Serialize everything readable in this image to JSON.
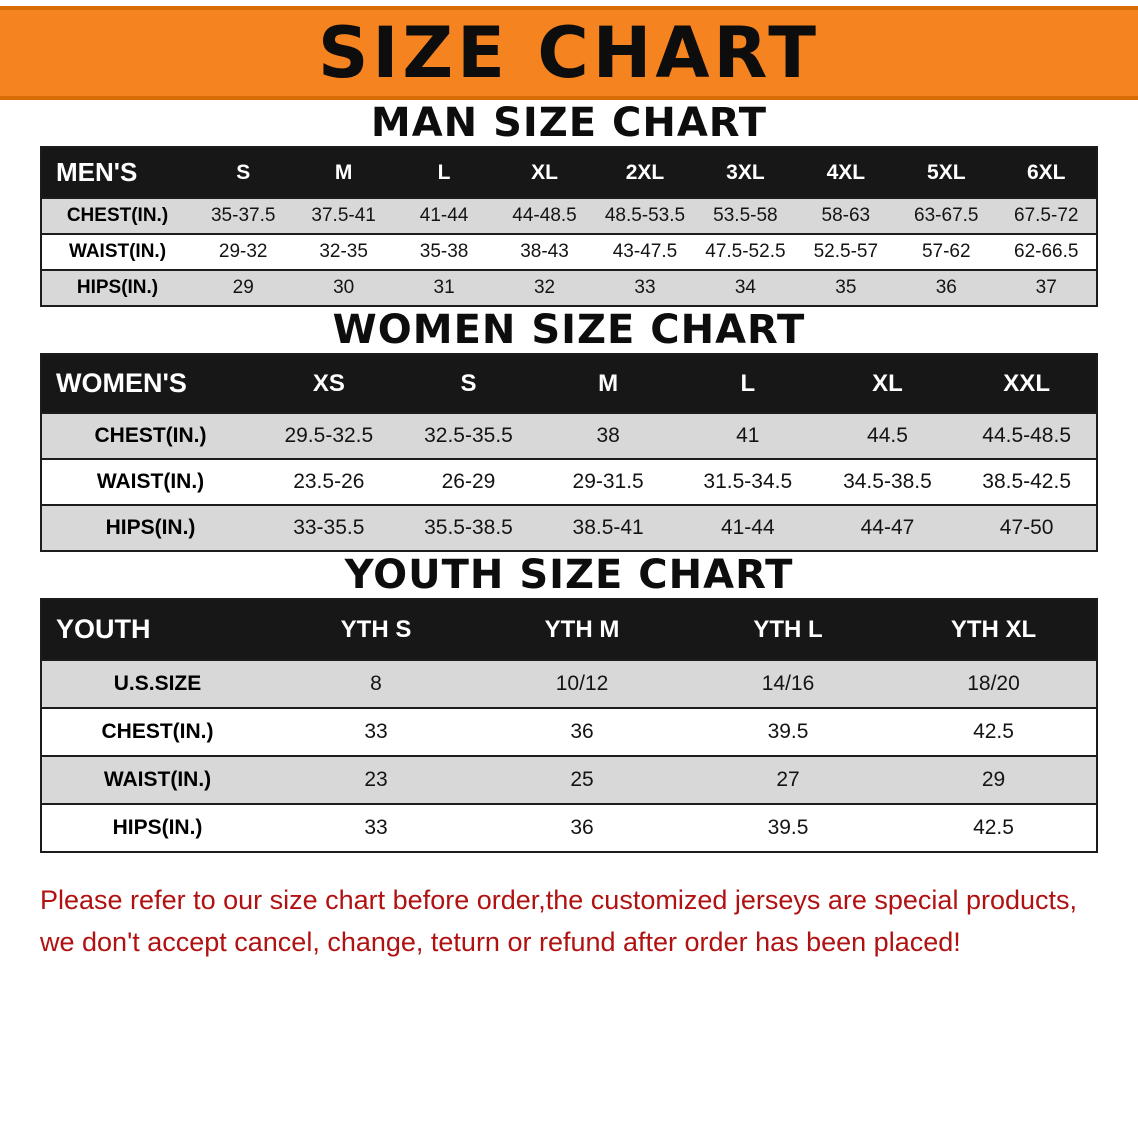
{
  "banner": {
    "title": "SIZE CHART"
  },
  "sections": [
    {
      "heading": "MAN SIZE CHART",
      "table": {
        "header": [
          "MEN'S",
          "S",
          "M",
          "L",
          "XL",
          "2XL",
          "3XL",
          "4XL",
          "5XL",
          "6XL"
        ],
        "rows": [
          {
            "label": "CHEST(IN.)",
            "values": [
              "35-37.5",
              "37.5-41",
              "41-44",
              "44-48.5",
              "48.5-53.5",
              "53.5-58",
              "58-63",
              "63-67.5",
              "67.5-72"
            ]
          },
          {
            "label": "WAIST(IN.)",
            "values": [
              "29-32",
              "32-35",
              "35-38",
              "38-43",
              "43-47.5",
              "47.5-52.5",
              "52.5-57",
              "57-62",
              "62-66.5"
            ]
          },
          {
            "label": "HIPS(IN.)",
            "values": [
              "29",
              "30",
              "31",
              "32",
              "33",
              "34",
              "35",
              "36",
              "37"
            ]
          }
        ]
      }
    },
    {
      "heading": "WOMEN SIZE CHART",
      "table": {
        "header": [
          "WOMEN'S",
          "XS",
          "S",
          "M",
          "L",
          "XL",
          "XXL"
        ],
        "rows": [
          {
            "label": "CHEST(IN.)",
            "values": [
              "29.5-32.5",
              "32.5-35.5",
              "38",
              "41",
              "44.5",
              "44.5-48.5"
            ]
          },
          {
            "label": "WAIST(IN.)",
            "values": [
              "23.5-26",
              "26-29",
              "29-31.5",
              "31.5-34.5",
              "34.5-38.5",
              "38.5-42.5"
            ]
          },
          {
            "label": "HIPS(IN.)",
            "values": [
              "33-35.5",
              "35.5-38.5",
              "38.5-41",
              "41-44",
              "44-47",
              "47-50"
            ]
          }
        ]
      }
    },
    {
      "heading": "YOUTH SIZE CHART",
      "table": {
        "header": [
          "YOUTH",
          "YTH S",
          "YTH M",
          "YTH L",
          "YTH XL"
        ],
        "rows": [
          {
            "label": "U.S.SIZE",
            "values": [
              "8",
              "10/12",
              "14/16",
              "18/20"
            ]
          },
          {
            "label": "CHEST(IN.)",
            "values": [
              "33",
              "36",
              "39.5",
              "42.5"
            ]
          },
          {
            "label": "WAIST(IN.)",
            "values": [
              "23",
              "25",
              "27",
              "29"
            ]
          },
          {
            "label": "HIPS(IN.)",
            "values": [
              "33",
              "36",
              "39.5",
              "42.5"
            ]
          }
        ]
      }
    }
  ],
  "disclaimer": {
    "line1": "Please refer to our size chart before order,the customized jerseys are special products,",
    "line2": "we don't accept cancel, change, teturn or refund after order has been placed!"
  },
  "colors": {
    "banner_bg": "#f5831f",
    "header_bg": "#171717",
    "row_alt_bg": "#d8d8d8",
    "disclaimer_red": "#b01212"
  }
}
